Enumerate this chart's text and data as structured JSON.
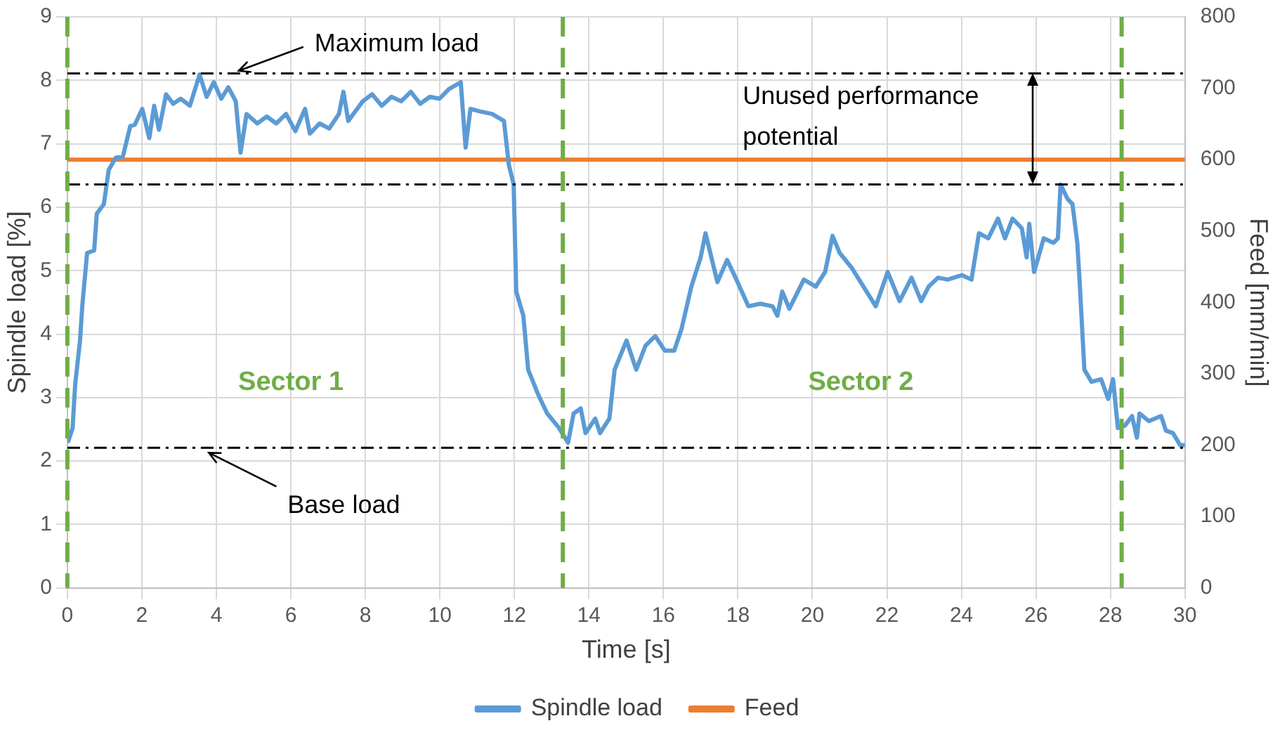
{
  "chart_data": {
    "type": "line",
    "xlabel": "Time [s]",
    "ylabel": "Spindle load [%]",
    "y2label": "Feed [mm/min]",
    "xlim": [
      0,
      30
    ],
    "xticks": [
      0,
      2,
      4,
      6,
      8,
      10,
      12,
      14,
      16,
      18,
      20,
      22,
      24,
      26,
      28,
      30
    ],
    "ylim": [
      0,
      9
    ],
    "yticks": [
      0,
      1,
      2,
      3,
      4,
      5,
      6,
      7,
      8,
      9
    ],
    "y2lim": [
      0,
      800
    ],
    "y2ticks": [
      0,
      100,
      200,
      300,
      400,
      500,
      600,
      700,
      800
    ],
    "grid": true,
    "legend": "bottom",
    "marker": "none",
    "line_style": "solid",
    "series": [
      {
        "name": "Spindle load",
        "color": "#5b9bd5",
        "x": [
          0.01,
          0.14,
          0.21,
          0.34,
          0.4,
          0.53,
          0.72,
          0.79,
          0.98,
          1.11,
          1.3,
          1.49,
          1.69,
          1.81,
          2.01,
          2.2,
          2.33,
          2.46,
          2.65,
          2.84,
          3.04,
          3.29,
          3.55,
          3.74,
          3.93,
          4.13,
          4.32,
          4.52,
          4.65,
          4.81,
          5.1,
          5.35,
          5.61,
          5.87,
          6.12,
          6.38,
          6.51,
          6.77,
          7.03,
          7.29,
          7.41,
          7.54,
          7.93,
          8.18,
          8.44,
          8.7,
          8.96,
          9.22,
          9.47,
          9.73,
          9.99,
          10.24,
          10.56,
          10.69,
          10.82,
          11.08,
          11.4,
          11.72,
          11.85,
          11.98,
          12.05,
          12.24,
          12.37,
          12.63,
          12.88,
          13.2,
          13.44,
          13.59,
          13.78,
          13.91,
          14.17,
          14.3,
          14.55,
          14.69,
          15.01,
          15.27,
          15.52,
          15.78,
          16.04,
          16.29,
          16.49,
          16.75,
          17.0,
          17.13,
          17.45,
          17.71,
          17.96,
          18.28,
          18.6,
          18.93,
          19.06,
          19.19,
          19.38,
          19.77,
          20.09,
          20.34,
          20.54,
          20.73,
          21.05,
          21.7,
          22.02,
          22.34,
          22.66,
          22.92,
          23.12,
          23.37,
          23.63,
          24.01,
          24.27,
          24.47,
          24.72,
          24.98,
          25.17,
          25.37,
          25.62,
          25.75,
          25.82,
          25.95,
          26.21,
          26.47,
          26.59,
          26.66,
          26.85,
          26.98,
          27.11,
          27.17,
          27.3,
          27.49,
          27.75,
          27.94,
          28.07,
          28.2,
          28.39,
          28.58,
          28.71,
          28.78,
          29.03,
          29.36,
          29.49,
          29.68,
          29.87,
          30.0
        ],
        "values": [
          2.29,
          2.52,
          3.21,
          3.9,
          4.44,
          5.28,
          5.32,
          5.9,
          6.05,
          6.59,
          6.78,
          6.8,
          7.28,
          7.3,
          7.55,
          7.09,
          7.6,
          7.22,
          7.78,
          7.63,
          7.71,
          7.6,
          8.09,
          7.74,
          7.97,
          7.71,
          7.89,
          7.67,
          6.86,
          7.47,
          7.32,
          7.43,
          7.32,
          7.47,
          7.2,
          7.55,
          7.16,
          7.32,
          7.24,
          7.47,
          7.82,
          7.36,
          7.67,
          7.78,
          7.6,
          7.74,
          7.67,
          7.82,
          7.63,
          7.74,
          7.71,
          7.86,
          7.97,
          6.94,
          7.55,
          7.51,
          7.47,
          7.36,
          6.67,
          6.36,
          4.67,
          4.29,
          3.44,
          3.06,
          2.75,
          2.52,
          2.29,
          2.75,
          2.83,
          2.44,
          2.67,
          2.44,
          2.67,
          3.44,
          3.9,
          3.44,
          3.82,
          3.97,
          3.74,
          3.74,
          4.09,
          4.75,
          5.21,
          5.59,
          4.82,
          5.17,
          4.86,
          4.44,
          4.48,
          4.44,
          4.29,
          4.67,
          4.4,
          4.86,
          4.75,
          4.98,
          5.55,
          5.28,
          5.05,
          4.44,
          4.98,
          4.52,
          4.89,
          4.52,
          4.75,
          4.89,
          4.86,
          4.93,
          4.86,
          5.59,
          5.51,
          5.82,
          5.51,
          5.82,
          5.67,
          5.21,
          5.74,
          4.98,
          5.51,
          5.44,
          5.51,
          6.36,
          6.13,
          6.05,
          5.44,
          4.86,
          3.44,
          3.25,
          3.29,
          2.98,
          3.29,
          2.52,
          2.56,
          2.71,
          2.37,
          2.75,
          2.63,
          2.71,
          2.48,
          2.44,
          2.25,
          2.25
        ]
      },
      {
        "name": "Feed",
        "color": "#ed7d31",
        "axis": "y2",
        "x": [
          0,
          30
        ],
        "values": [
          600,
          600
        ]
      }
    ],
    "ref_lines": [
      {
        "axis": "y",
        "value": 8.11,
        "color": "#000000",
        "line_style": "dashdot"
      },
      {
        "axis": "y",
        "value": 6.36,
        "color": "#000000",
        "line_style": "dashdot"
      },
      {
        "axis": "y",
        "value": 2.21,
        "color": "#000000",
        "line_style": "dashdot"
      },
      {
        "axis": "x",
        "value": 0,
        "color": "#70ad47",
        "line_style": "dashed"
      },
      {
        "axis": "x",
        "value": 13.3,
        "color": "#70ad47",
        "line_style": "dashed"
      },
      {
        "axis": "x",
        "value": 28.3,
        "color": "#70ad47",
        "line_style": "dashed"
      }
    ],
    "annotations": [
      {
        "text": "Maximum load",
        "x": 4.6,
        "y": 8.15
      },
      {
        "text": "Unused performance potential",
        "x": 25.9,
        "y": 8.11
      },
      {
        "text": "Base load",
        "x": 3.8,
        "y": 2.13
      },
      "Sector 1",
      "Sector 2"
    ]
  }
}
